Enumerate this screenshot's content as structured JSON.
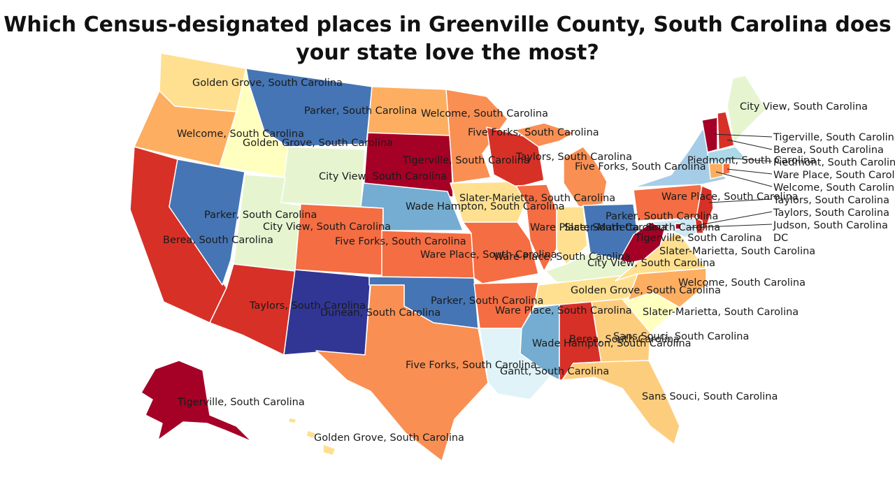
{
  "title": "Which Census-designated places in Greenville County, South Carolina does your state love the most?",
  "colors": {
    "dark_red": "#a50026",
    "red": "#d73027",
    "red_orange": "#f46d43",
    "orange": "#fdae61",
    "light_orange": "#fee090",
    "pale_yellow": "#ffffbf",
    "pale_green": "#e6f5d0",
    "pale_blue": "#e0f3f8",
    "light_blue": "#abd9e9",
    "mid_blue": "#74add1",
    "blue": "#4575b4",
    "dark_blue": "#313695"
  },
  "states": [
    {
      "state": "Washington",
      "place": "Golden Grove, South Carolina"
    },
    {
      "state": "Oregon",
      "place": "Welcome, South Carolina"
    },
    {
      "state": "California",
      "place": "Berea, South Carolina"
    },
    {
      "state": "Nevada",
      "place": "Parker, South Carolina"
    },
    {
      "state": "Idaho",
      "place": "Golden Grove, South Carolina"
    },
    {
      "state": "Montana",
      "place": "Parker, South Carolina"
    },
    {
      "state": "Wyoming",
      "place": "City View, South Carolina"
    },
    {
      "state": "Utah",
      "place": "City View, South Carolina"
    },
    {
      "state": "Arizona",
      "place": "Taylors, South Carolina"
    },
    {
      "state": "Colorado",
      "place": "Five Forks, South Carolina"
    },
    {
      "state": "New Mexico",
      "place": "Dunean, South Carolina"
    },
    {
      "state": "North Dakota",
      "place": "Welcome, South Carolina"
    },
    {
      "state": "South Dakota",
      "place": "Tigerville, South Carolina"
    },
    {
      "state": "Nebraska",
      "place": "Wade Hampton, South Carolina"
    },
    {
      "state": "Kansas",
      "place": "Ware Place, South Carolina"
    },
    {
      "state": "Oklahoma",
      "place": "Parker, South Carolina"
    },
    {
      "state": "Texas",
      "place": "Five Forks, South Carolina"
    },
    {
      "state": "Minnesota",
      "place": "Five Forks, South Carolina"
    },
    {
      "state": "Iowa",
      "place": "Slater-Marietta, South Carolina"
    },
    {
      "state": "Missouri",
      "place": "Ware Place, South Carolina"
    },
    {
      "state": "Arkansas",
      "place": "Ware Place, South Carolina"
    },
    {
      "state": "Louisiana",
      "place": "Gantt, South Carolina"
    },
    {
      "state": "Wisconsin",
      "place": "Taylors, South Carolina"
    },
    {
      "state": "Illinois",
      "place": "Ware Place, South Carolina"
    },
    {
      "state": "Michigan",
      "place": "Five Forks, South Carolina"
    },
    {
      "state": "Indiana",
      "place": "Slater-Marietta, South Carolina"
    },
    {
      "state": "Ohio",
      "place": "Parker, South Carolina"
    },
    {
      "state": "Kentucky",
      "place": "City View, South Carolina"
    },
    {
      "state": "Tennessee",
      "place": "Golden Grove, South Carolina"
    },
    {
      "state": "Mississippi",
      "place": "Wade Hampton, South Carolina"
    },
    {
      "state": "Alabama",
      "place": "Berea, South Carolina"
    },
    {
      "state": "Georgia",
      "place": "Sans Souci, South Carolina"
    },
    {
      "state": "Florida",
      "place": "Sans Souci, South Carolina"
    },
    {
      "state": "South Carolina",
      "place": "Slater-Marietta, South Carolina"
    },
    {
      "state": "North Carolina",
      "place": "Welcome, South Carolina"
    },
    {
      "state": "Virginia",
      "place": "Slater-Marietta, South Carolina"
    },
    {
      "state": "West Virginia",
      "place": "Tigerville, South Carolina"
    },
    {
      "state": "Pennsylvania",
      "place": "Ware Place, South Carolina"
    },
    {
      "state": "New York",
      "place": "Five Forks, South Carolina"
    },
    {
      "state": "Maine",
      "place": "City View, South Carolina"
    },
    {
      "state": "Vermont",
      "place": "Tigerville, South Carolina"
    },
    {
      "state": "New Hampshire",
      "place": "Berea, South Carolina"
    },
    {
      "state": "Massachusetts",
      "place": "Piedmont, South Carolina"
    },
    {
      "state": "Rhode Island",
      "place": "Ware Place, South Carolina"
    },
    {
      "state": "Connecticut",
      "place": "Welcome, South Carolina"
    },
    {
      "state": "New Jersey",
      "place": "Taylors, South Carolina"
    },
    {
      "state": "Delaware",
      "place": "Taylors, South Carolina"
    },
    {
      "state": "Maryland",
      "place": "Judson, South Carolina"
    },
    {
      "state": "District of Columbia",
      "place": "DC"
    },
    {
      "state": "Alaska",
      "place": "Tigerville, South Carolina"
    },
    {
      "state": "Hawaii",
      "place": "Golden Grove, South Carolina"
    }
  ],
  "labels": {
    "wa": "Golden Grove, South Carolina",
    "mt": "Parker, South Carolina",
    "nd": "Welcome, South Carolina",
    "me": "City View, South Carolina",
    "or": "Welcome, South Carolina",
    "id": "Golden Grove, South Carolina",
    "mn": "Five Forks, South Carolina",
    "sd": "Tigerville, South Carolina",
    "wi": "Taylors, South Carolina",
    "mi": "Five Forks, South Carolina",
    "ny_ma": "Piedmont, South Carolina",
    "wy": "City View, South Carolina",
    "ia": "Slater-Marietta, South Carolina",
    "ne": "Wade Hampton, South Carolina",
    "pa": "Ware Place, South Carolina",
    "nv": "Parker, South Carolina",
    "oh": "Parker, South Carolina",
    "ut": "City View, South Carolina",
    "il": "Ware Place, South Carolina",
    "in": "Slater-Marietta, South Carolina",
    "ca": "Berea, South Carolina",
    "co": "Five Forks, South Carolina",
    "wv": "Tigerville, South Carolina",
    "dc": "DC",
    "va": "Slater-Marietta, South Carolina",
    "ks": "Ware Place, South Carolina",
    "mo": "Ware Place, South Carolina",
    "ky": "City View, South Carolina",
    "nc": "Welcome, South Carolina",
    "tn": "Golden Grove, South Carolina",
    "ok": "Parker, South Carolina",
    "az": "Taylors, South Carolina",
    "nm": "Dunean, South Carolina",
    "ar": "Ware Place, South Carolina",
    "sc": "Slater-Marietta, South Carolina",
    "ga": "Sans Souci, South Carolina",
    "al": "Berea, South Carolina",
    "ms": "Wade Hampton, South Carolina",
    "tx": "Five Forks, South Carolina",
    "la": "Gantt, South Carolina",
    "fl": "Sans Souci, South Carolina",
    "ak": "Tigerville, South Carolina",
    "hi": "Golden Grove, South Carolina",
    "vt_c": "Tigerville, South Carolina",
    "nh_c": "Berea, South Carolina",
    "ma_c": "Piedmont, South Carolina",
    "ri_c": "Ware Place, South Carolina",
    "ct_c": "Welcome, South Carolina",
    "nj_c": "Taylors, South Carolina",
    "nj_c2": "Taylors, South Carolina",
    "de_c": "Taylors, South Carolina",
    "md_c": "Judson, South Carolina"
  }
}
